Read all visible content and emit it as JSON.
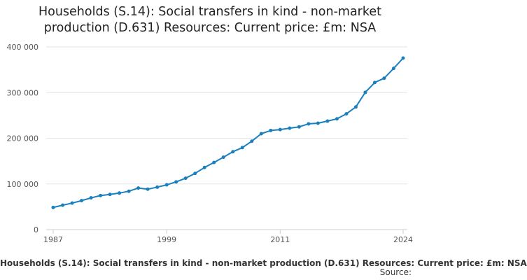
{
  "title_line1": "Households (S.14): Social transfers in kind - non-market",
  "title_line2": "production (D.631) Resources: Current price: £m: NSA",
  "legend_label": "Households (S.14): Social transfers in kind - non-market production (D.631) Resources: Current price: £m: NSA",
  "source_label": "Source:",
  "colors": {
    "line": "#1a7fbd",
    "grid": "#e6e6e6",
    "axis": "#cccccc",
    "tick_text": "#555555"
  },
  "chart_data": {
    "type": "line",
    "title": "Households (S.14): Social transfers in kind - non-market production (D.631) Resources: Current price: £m: NSA",
    "xlabel": "",
    "ylabel": "",
    "xlim": [
      1987,
      2024
    ],
    "ylim": [
      0,
      400000
    ],
    "x_ticks": [
      {
        "value": 1987,
        "label": "1987"
      },
      {
        "value": 1999,
        "label": "1999"
      },
      {
        "value": 2011,
        "label": "2011"
      },
      {
        "value": 2024,
        "label": "2024"
      }
    ],
    "y_ticks": [
      {
        "value": 0,
        "label": "0"
      },
      {
        "value": 100000,
        "label": "100 000"
      },
      {
        "value": 200000,
        "label": "200 000"
      },
      {
        "value": 300000,
        "label": "300 000"
      },
      {
        "value": 400000,
        "label": "400 000"
      }
    ],
    "grid": true,
    "legend": "bottom",
    "series": [
      {
        "name": "Households (S.14): Social transfers in kind - non-market production (D.631) Resources: Current price: £m: NSA",
        "x": [
          1987,
          1988,
          1989,
          1990,
          1991,
          1992,
          1993,
          1994,
          1995,
          1996,
          1997,
          1998,
          1999,
          2000,
          2001,
          2002,
          2003,
          2004,
          2005,
          2006,
          2007,
          2008,
          2009,
          2010,
          2011,
          2012,
          2013,
          2014,
          2015,
          2016,
          2017,
          2018,
          2019,
          2020,
          2021,
          2022,
          2023,
          2024
        ],
        "values": [
          48500,
          53500,
          58000,
          63500,
          69500,
          74500,
          77000,
          80000,
          84000,
          91000,
          88500,
          93000,
          98000,
          104500,
          112500,
          123000,
          136000,
          147000,
          158500,
          170500,
          179500,
          193500,
          210000,
          217000,
          219000,
          222000,
          225000,
          231500,
          233000,
          237500,
          242500,
          253500,
          268500,
          300500,
          322000,
          331500,
          353000,
          375500
        ]
      }
    ]
  }
}
